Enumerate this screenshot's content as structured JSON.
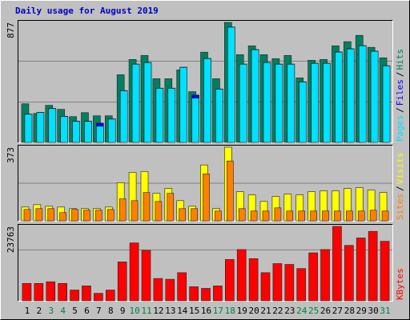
{
  "chart_data": [
    {
      "type": "bar",
      "title": "Daily usage for August 2019",
      "legend_separator": "/",
      "ylim": [
        0,
        877
      ],
      "yticks": [
        877
      ],
      "series": [
        {
          "name": "Hits",
          "color": "#008060",
          "values": [
            286,
            216,
            275,
            246,
            193,
            222,
            199,
            199,
            497,
            608,
            637,
            468,
            468,
            532,
            374,
            661,
            468,
            877,
            643,
            707,
            643,
            614,
            637,
            474,
            602,
            608,
            707,
            737,
            783,
            696,
            620
          ]
        },
        {
          "name": "Files",
          "color": "#0000ff",
          "values": [
            212,
            224,
            253,
            195,
            160,
            160,
            146,
            177,
            382,
            575,
            587,
            400,
            400,
            552,
            350,
            616,
            394,
            844,
            575,
            680,
            587,
            575,
            575,
            446,
            581,
            581,
            663,
            686,
            709,
            669,
            563
          ]
        },
        {
          "name": "Pages",
          "color": "#00e0ff",
          "values": [
            210,
            222,
            251,
            193,
            158,
            158,
            123,
            175,
            380,
            573,
            585,
            398,
            398,
            550,
            327,
            614,
            392,
            842,
            573,
            678,
            585,
            573,
            573,
            444,
            579,
            579,
            661,
            684,
            707,
            667,
            561
          ]
        }
      ]
    },
    {
      "type": "bar",
      "legend_separator": "/",
      "ylim": [
        0,
        373
      ],
      "yticks": [
        373
      ],
      "series": [
        {
          "name": "Visits",
          "color": "#ffff00",
          "values": [
            73,
            85,
            77,
            73,
            65,
            65,
            65,
            73,
            195,
            247,
            251,
            142,
            166,
            105,
            77,
            284,
            65,
            373,
            150,
            134,
            101,
            126,
            138,
            134,
            150,
            154,
            154,
            166,
            170,
            158,
            146
          ]
        },
        {
          "name": "Sites",
          "color": "#ff8000",
          "values": [
            61,
            65,
            65,
            45,
            61,
            57,
            57,
            61,
            114,
            105,
            146,
            101,
            142,
            65,
            65,
            239,
            53,
            304,
            65,
            53,
            53,
            69,
            53,
            53,
            53,
            53,
            53,
            53,
            53,
            57,
            53
          ]
        }
      ]
    },
    {
      "type": "bar",
      "ylim": [
        0,
        23763
      ],
      "yticks": [
        23763
      ],
      "categories": [
        "1",
        "2",
        "3",
        "4",
        "5",
        "6",
        "7",
        "8",
        "9",
        "10",
        "11",
        "12",
        "13",
        "14",
        "15",
        "16",
        "17",
        "18",
        "19",
        "20",
        "21",
        "22",
        "23",
        "24",
        "25",
        "26",
        "27",
        "28",
        "29",
        "30",
        "31"
      ],
      "category_colors": [
        "#000000",
        "#000000",
        "#008040",
        "#008040",
        "#000000",
        "#000000",
        "#000000",
        "#000000",
        "#000000",
        "#008040",
        "#008040",
        "#000000",
        "#000000",
        "#000000",
        "#000000",
        "#000000",
        "#008040",
        "#008040",
        "#000000",
        "#000000",
        "#000000",
        "#000000",
        "#000000",
        "#008040",
        "#008040",
        "#000000",
        "#000000",
        "#000000",
        "#000000",
        "#000000",
        "#008040"
      ],
      "series": [
        {
          "name": "KBytes",
          "color": "#ff0000",
          "values": [
            5745,
            5745,
            6267,
            5745,
            3656,
            4961,
            2611,
            3656,
            12534,
            18540,
            16190,
            7312,
            7051,
            9140,
            4700,
            4178,
            4961,
            13318,
            16451,
            13579,
            9140,
            12012,
            11751,
            10445,
            15407,
            16451,
            23763,
            17757,
            20107,
            22196,
            19062
          ]
        }
      ]
    }
  ]
}
